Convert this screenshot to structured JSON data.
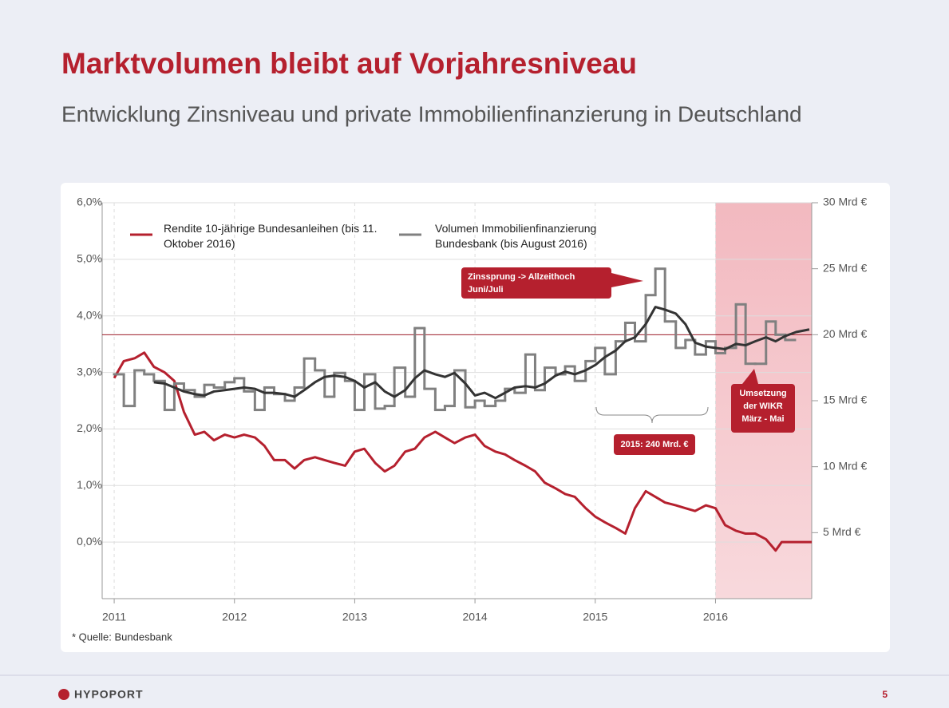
{
  "header": {
    "title": "Marktvolumen bleibt auf Vorjahresniveau",
    "subtitle": "Entwicklung Zinsniveau und private Immobilienfinanzierung in Deutschland"
  },
  "footer": {
    "brand": "HYPOPORT",
    "page": "5"
  },
  "chart_data": {
    "type": "line",
    "source": "* Quelle: Bundesbank",
    "xlim": [
      2010.9,
      2016.8
    ],
    "xticks": [
      2011,
      2012,
      2013,
      2014,
      2015,
      2016
    ],
    "ylim": [
      -1,
      6
    ],
    "yticks": [
      {
        "value": 0,
        "label": "0,0%"
      },
      {
        "value": 1,
        "label": "1,0%"
      },
      {
        "value": 2,
        "label": "2,0%"
      },
      {
        "value": 3,
        "label": "3,0%"
      },
      {
        "value": 4,
        "label": "4,0%"
      },
      {
        "value": 5,
        "label": "5,0%"
      },
      {
        "value": 6,
        "label": "6,0%"
      }
    ],
    "y2lim": [
      0,
      30
    ],
    "y2ticks": [
      {
        "value": 5,
        "label": "5 Mrd €"
      },
      {
        "value": 10,
        "label": "10 Mrd €"
      },
      {
        "value": 15,
        "label": "15 Mrd €"
      },
      {
        "value": 20,
        "label": "20 Mrd €"
      },
      {
        "value": 25,
        "label": "25 Mrd €"
      },
      {
        "value": 30,
        "label": "30 Mrd €"
      }
    ],
    "grid": true,
    "reference_line": {
      "value": 20,
      "axis": "y2",
      "color": "#9b1c28"
    },
    "highlight_xrange": [
      2016,
      2016.8
    ],
    "series": [
      {
        "name": "Rendite 10-jährige Bundesanleihen (bis 11. Oktober 2016)",
        "color": "#b5202e",
        "style": "line",
        "x": [
          2011,
          2011.08,
          2011.17,
          2011.25,
          2011.33,
          2011.42,
          2011.5,
          2011.58,
          2011.67,
          2011.75,
          2011.83,
          2011.92,
          2012,
          2012.08,
          2012.17,
          2012.25,
          2012.33,
          2012.42,
          2012.5,
          2012.58,
          2012.67,
          2012.75,
          2012.83,
          2012.92,
          2013,
          2013.08,
          2013.17,
          2013.25,
          2013.33,
          2013.42,
          2013.5,
          2013.58,
          2013.67,
          2013.75,
          2013.83,
          2013.92,
          2014,
          2014.08,
          2014.17,
          2014.25,
          2014.33,
          2014.42,
          2014.5,
          2014.58,
          2014.67,
          2014.75,
          2014.83,
          2014.92,
          2015,
          2015.08,
          2015.17,
          2015.25,
          2015.33,
          2015.42,
          2015.5,
          2015.58,
          2015.67,
          2015.75,
          2015.83,
          2015.92,
          2016,
          2016.08,
          2016.17,
          2016.25,
          2016.33,
          2016.42,
          2016.5,
          2016.55,
          2016.8
        ],
        "values": [
          2.9,
          3.2,
          3.25,
          3.35,
          3.1,
          3.0,
          2.85,
          2.3,
          1.9,
          1.95,
          1.8,
          1.9,
          1.85,
          1.9,
          1.85,
          1.7,
          1.45,
          1.45,
          1.3,
          1.45,
          1.5,
          1.45,
          1.4,
          1.35,
          1.6,
          1.65,
          1.4,
          1.25,
          1.35,
          1.6,
          1.65,
          1.85,
          1.95,
          1.85,
          1.75,
          1.85,
          1.9,
          1.7,
          1.6,
          1.55,
          1.45,
          1.35,
          1.25,
          1.05,
          0.95,
          0.85,
          0.8,
          0.6,
          0.45,
          0.35,
          0.25,
          0.15,
          0.6,
          0.9,
          0.8,
          0.7,
          0.65,
          0.6,
          0.55,
          0.65,
          0.6,
          0.3,
          0.2,
          0.15,
          0.15,
          0.05,
          -0.15,
          0.0,
          0.0
        ]
      },
      {
        "name": "Volumen Immobilienfinanzierung Bundesbank (bis August 2016)",
        "color": "#808080",
        "style": "step",
        "axis": "y2",
        "x": [
          2011,
          2011.08,
          2011.17,
          2011.25,
          2011.33,
          2011.42,
          2011.5,
          2011.58,
          2011.67,
          2011.75,
          2011.83,
          2011.92,
          2012,
          2012.08,
          2012.17,
          2012.25,
          2012.33,
          2012.42,
          2012.5,
          2012.58,
          2012.67,
          2012.75,
          2012.83,
          2012.92,
          2013,
          2013.08,
          2013.17,
          2013.25,
          2013.33,
          2013.42,
          2013.5,
          2013.58,
          2013.67,
          2013.75,
          2013.83,
          2013.92,
          2014,
          2014.08,
          2014.17,
          2014.25,
          2014.33,
          2014.42,
          2014.5,
          2014.58,
          2014.67,
          2014.75,
          2014.83,
          2014.92,
          2015,
          2015.08,
          2015.17,
          2015.25,
          2015.33,
          2015.42,
          2015.5,
          2015.58,
          2015.67,
          2015.75,
          2015.83,
          2015.92,
          2016,
          2016.08,
          2016.17,
          2016.25,
          2016.33,
          2016.42,
          2016.5,
          2016.58
        ],
        "values": [
          17,
          14.6,
          17.3,
          17,
          16.5,
          14.3,
          16.3,
          15.8,
          15.3,
          16.2,
          16,
          16.4,
          16.7,
          15.7,
          14.3,
          16,
          15.5,
          15,
          16,
          18.2,
          17.3,
          15.3,
          17.1,
          16.5,
          14.3,
          17,
          14.4,
          14.6,
          17.5,
          15.3,
          20.5,
          15.9,
          14.3,
          14.6,
          17.3,
          14.5,
          15,
          14.6,
          15,
          15.9,
          15.6,
          18.5,
          15.8,
          17.5,
          17,
          17.6,
          16.5,
          18,
          19,
          17,
          19.5,
          20.9,
          19.5,
          23,
          25,
          21,
          19,
          19.6,
          18.5,
          19.5,
          18.6,
          19,
          22.3,
          17.8,
          17.8,
          21,
          20,
          19.6
        ]
      },
      {
        "color": "#333333",
        "style": "line",
        "axis": "y2",
        "x": [
          2011.33,
          2011.42,
          2011.5,
          2011.58,
          2011.67,
          2011.75,
          2011.83,
          2011.92,
          2012,
          2012.08,
          2012.17,
          2012.25,
          2012.33,
          2012.42,
          2012.5,
          2012.58,
          2012.67,
          2012.75,
          2012.83,
          2012.92,
          2013,
          2013.08,
          2013.17,
          2013.25,
          2013.33,
          2013.42,
          2013.5,
          2013.58,
          2013.67,
          2013.75,
          2013.83,
          2013.92,
          2014,
          2014.08,
          2014.17,
          2014.25,
          2014.33,
          2014.42,
          2014.5,
          2014.58,
          2014.67,
          2014.75,
          2014.83,
          2014.92,
          2015,
          2015.08,
          2015.17,
          2015.25,
          2015.33,
          2015.42,
          2015.5,
          2015.58,
          2015.67,
          2015.75,
          2015.83,
          2015.92,
          2016,
          2016.08,
          2016.17,
          2016.25,
          2016.33,
          2016.42,
          2016.5,
          2016.58,
          2016.67,
          2016.78
        ],
        "values": [
          16.4,
          16.3,
          16,
          15.7,
          15.5,
          15.4,
          15.7,
          15.8,
          15.9,
          16,
          15.9,
          15.6,
          15.6,
          15.5,
          15.3,
          15.8,
          16.4,
          16.8,
          16.9,
          16.8,
          16.5,
          16,
          16.4,
          15.7,
          15.3,
          15.8,
          16.7,
          17.3,
          17,
          16.8,
          17.1,
          16.3,
          15.4,
          15.6,
          15.2,
          15.6,
          16,
          16.1,
          16,
          16.3,
          16.9,
          17.2,
          17,
          17.3,
          17.7,
          18.3,
          18.8,
          19.5,
          19.8,
          20.8,
          22.1,
          21.9,
          21.6,
          20.8,
          19.4,
          19.1,
          19,
          18.9,
          19.3,
          19.2,
          19.5,
          19.8,
          19.5,
          19.9,
          20.2,
          20.4
        ]
      }
    ],
    "annotations": [
      "Zinssprung -> Allzeithoch Juni/Juli",
      "2015: 240 Mrd. €",
      "Umsetzung der WIKR März - Mai"
    ]
  }
}
